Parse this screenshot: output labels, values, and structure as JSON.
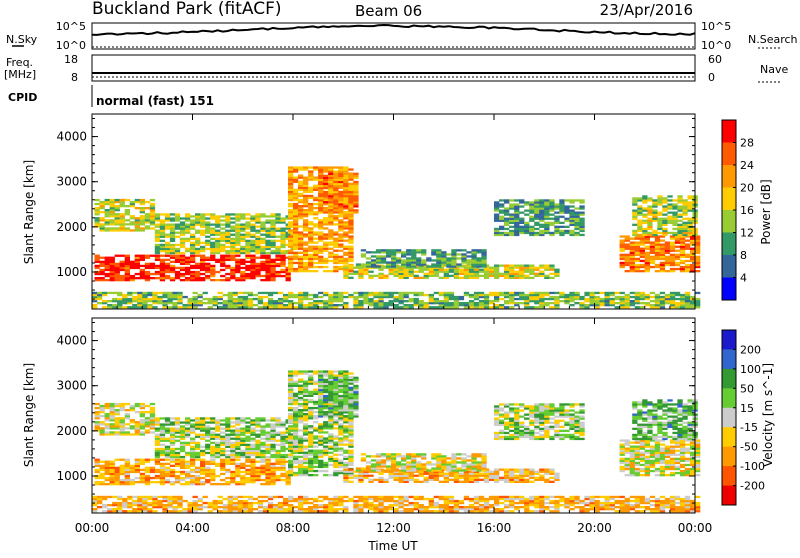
{
  "header": {
    "site": "Buckland Park (fitACF)",
    "beam": "Beam 06",
    "date": "23/Apr/2016"
  },
  "noise_panel": {
    "left_label": "N.Sky",
    "right_label": "N.Search",
    "left_ticks": [
      "10^5",
      "10^0"
    ],
    "right_ticks": [
      "10^5",
      "10^0"
    ]
  },
  "freq_panel": {
    "left_label_1": "Freq.",
    "left_label_2": "[MHz]",
    "right_label": "Nave",
    "left_ticks": [
      "18",
      "8"
    ],
    "right_ticks": [
      "60",
      "0"
    ]
  },
  "cpid_panel": {
    "label": "CPID",
    "mode": "normal (fast) 151"
  },
  "power_panel": {
    "ylabel": "Slant Range [km]",
    "colorbar_label": "Power [dB]",
    "colorbar_ticks": [
      "28",
      "24",
      "20",
      "16",
      "12",
      "8",
      "4"
    ],
    "colorbar_colors": [
      "#ff0000",
      "#ff5a00",
      "#ff9900",
      "#ffcc00",
      "#99cc33",
      "#339966",
      "#336699",
      "#0000ff"
    ]
  },
  "velocity_panel": {
    "ylabel": "Slant Range [km]",
    "colorbar_label": "Velocity [m s^-1]",
    "colorbar_ticks": [
      "200",
      "100",
      "50",
      "15",
      "-15",
      "-50",
      "-100",
      "-200"
    ],
    "colorbar_colors": [
      "#1a1acc",
      "#3366cc",
      "#339933",
      "#66cc33",
      "#cccccc",
      "#ffcc00",
      "#ff9900",
      "#ff5500",
      "#ee0000"
    ]
  },
  "time_axis": {
    "ticks": [
      "00:00",
      "04:00",
      "08:00",
      "12:00",
      "16:00",
      "20:00",
      "00:00"
    ],
    "label": "Time UT"
  },
  "chart_data": {
    "type": "heatmap",
    "x_range_hours": [
      0,
      24
    ],
    "y_range_km": [
      180,
      4500
    ],
    "y_ticks_km": [
      1000,
      2000,
      3000,
      4000
    ],
    "power_db_range": [
      0,
      30
    ],
    "velocity_range": [
      -250,
      250
    ],
    "echo_regions": [
      {
        "t0": 0.1,
        "t1": 7.8,
        "r0": 800,
        "r1": 1350,
        "power": 27,
        "velocity": -60
      },
      {
        "t0": 0.1,
        "t1": 2.5,
        "r0": 1900,
        "r1": 2600,
        "power": 15,
        "velocity": -15
      },
      {
        "t0": 2.5,
        "t1": 8.0,
        "r0": 1400,
        "r1": 2300,
        "power": 13,
        "velocity": 15
      },
      {
        "t0": 7.8,
        "t1": 10.3,
        "r0": 1000,
        "r1": 3300,
        "power": 20,
        "velocity": 15
      },
      {
        "t0": 9.0,
        "t1": 10.5,
        "r0": 2300,
        "r1": 3200,
        "power": 22,
        "velocity": 50
      },
      {
        "t0": 10.0,
        "t1": 18.5,
        "r0": 850,
        "r1": 1150,
        "power": 15,
        "velocity": -50
      },
      {
        "t0": 10.5,
        "t1": 15.5,
        "r0": 1100,
        "r1": 1500,
        "power": 10,
        "velocity": -15
      },
      {
        "t0": 16.0,
        "t1": 19.5,
        "r0": 1800,
        "r1": 2600,
        "power": 10,
        "velocity": 15
      },
      {
        "t0": 21.0,
        "t1": 24.0,
        "r0": 1000,
        "r1": 1800,
        "power": 22,
        "velocity": -15
      },
      {
        "t0": 21.5,
        "t1": 24.0,
        "r0": 1800,
        "r1": 2700,
        "power": 14,
        "velocity": 50
      },
      {
        "t0": 0.0,
        "t1": 24.0,
        "r0": 200,
        "r1": 550,
        "power": 12,
        "velocity": -50
      }
    ]
  }
}
